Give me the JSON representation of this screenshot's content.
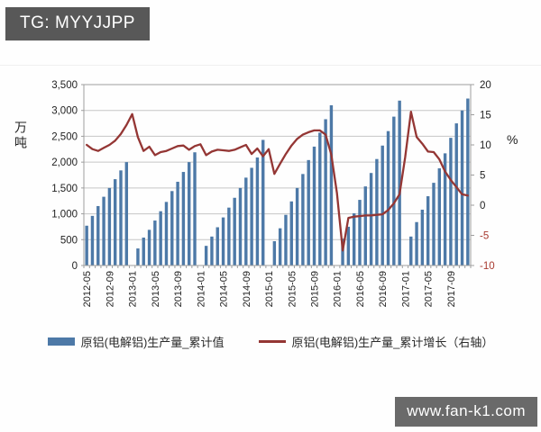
{
  "watermarks": {
    "top_left": "TG: MYYJJPP",
    "bottom_right": "www.fan-k1.com"
  },
  "colors": {
    "bar": "#4d79a7",
    "line": "#943634",
    "grid": "#c6c6c6",
    "axis": "#9e9e9e",
    "tick_text": "#1f1f1f",
    "negative_tick_text": "#a83a30",
    "badge_top_bg": "#585858",
    "badge_bottom_bg": "#6a6a6a"
  },
  "chart_data": {
    "type": "bar+line",
    "title": "",
    "legend_position": "bottom",
    "grid": "horizontal",
    "left_axis": {
      "unit": "万吨",
      "min": 0,
      "max": 3500,
      "step": 500,
      "ticks": [
        "0",
        "500",
        "1,000",
        "1,500",
        "2,000",
        "2,500",
        "3,000",
        "3,500"
      ]
    },
    "right_axis": {
      "unit": "%",
      "min": -10,
      "max": 20,
      "step": 5,
      "ticks": [
        "-10",
        "-5",
        "0",
        "5",
        "10",
        "15",
        "20"
      ]
    },
    "x_tick_labels": [
      "2012-05",
      "2012-09",
      "2013-01",
      "2013-05",
      "2013-09",
      "2014-01",
      "2014-05",
      "2014-09",
      "2015-01",
      "2015-05",
      "2015-09",
      "2016-01",
      "2016-05",
      "2016-09",
      "2017-01",
      "2017-05",
      "2017-09"
    ],
    "x_label_every_n_months": 4,
    "months": [
      "2012-05",
      "2012-06",
      "2012-07",
      "2012-08",
      "2012-09",
      "2012-10",
      "2012-11",
      "2012-12",
      "2013-01",
      "2013-02",
      "2013-03",
      "2013-04",
      "2013-05",
      "2013-06",
      "2013-07",
      "2013-08",
      "2013-09",
      "2013-10",
      "2013-11",
      "2013-12",
      "2014-01",
      "2014-02",
      "2014-03",
      "2014-04",
      "2014-05",
      "2014-06",
      "2014-07",
      "2014-08",
      "2014-09",
      "2014-10",
      "2014-11",
      "2014-12",
      "2015-01",
      "2015-02",
      "2015-03",
      "2015-04",
      "2015-05",
      "2015-06",
      "2015-07",
      "2015-08",
      "2015-09",
      "2015-10",
      "2015-11",
      "2015-12",
      "2016-01",
      "2016-02",
      "2016-03",
      "2016-04",
      "2016-05",
      "2016-06",
      "2016-07",
      "2016-08",
      "2016-09",
      "2016-10",
      "2016-11",
      "2016-12",
      "2017-01",
      "2017-02",
      "2017-03",
      "2017-04",
      "2017-05",
      "2017-06",
      "2017-07",
      "2017-08",
      "2017-09",
      "2017-10",
      "2017-11",
      "2017-12"
    ],
    "series": [
      {
        "name": "原铝(电解铝)生产量_累计值",
        "type": "bar",
        "axis": "left",
        "color": "#4d79a7",
        "values": [
          770,
          960,
          1150,
          1330,
          1500,
          1670,
          1840,
          2000,
          null,
          330,
          540,
          690,
          870,
          1050,
          1230,
          1440,
          1620,
          1810,
          2000,
          2190,
          null,
          380,
          560,
          740,
          930,
          1120,
          1310,
          1500,
          1700,
          1890,
          2090,
          2430,
          null,
          470,
          720,
          980,
          1240,
          1500,
          1770,
          2040,
          2300,
          2570,
          2830,
          3100,
          null,
          520,
          750,
          1010,
          1270,
          1530,
          1790,
          2060,
          2320,
          2600,
          2880,
          3190,
          null,
          560,
          840,
          1080,
          1340,
          1600,
          1880,
          2170,
          2470,
          2750,
          3000,
          3230
        ]
      },
      {
        "name": "原铝(电解铝)生产量_累计增长（右轴）",
        "type": "line",
        "axis": "right",
        "color": "#943634",
        "values": [
          10.0,
          9.3,
          9.0,
          9.5,
          10.0,
          10.7,
          11.8,
          13.3,
          15.1,
          11.3,
          9.0,
          9.7,
          8.3,
          8.8,
          9.0,
          9.4,
          9.8,
          9.9,
          9.2,
          9.8,
          10.1,
          8.3,
          8.9,
          9.2,
          9.1,
          9.0,
          9.2,
          9.6,
          10.0,
          8.5,
          9.4,
          8.1,
          9.3,
          5.2,
          6.9,
          8.5,
          9.9,
          11.0,
          11.7,
          12.1,
          12.4,
          12.4,
          11.7,
          8.4,
          2.0,
          -7.5,
          -2.1,
          -1.9,
          -1.8,
          -1.7,
          -1.7,
          -1.6,
          -1.5,
          -0.8,
          0.3,
          1.8,
          8.0,
          15.5,
          11.3,
          10.2,
          8.9,
          8.8,
          7.6,
          5.6,
          4.2,
          3.0,
          1.8,
          1.6
        ]
      }
    ]
  }
}
